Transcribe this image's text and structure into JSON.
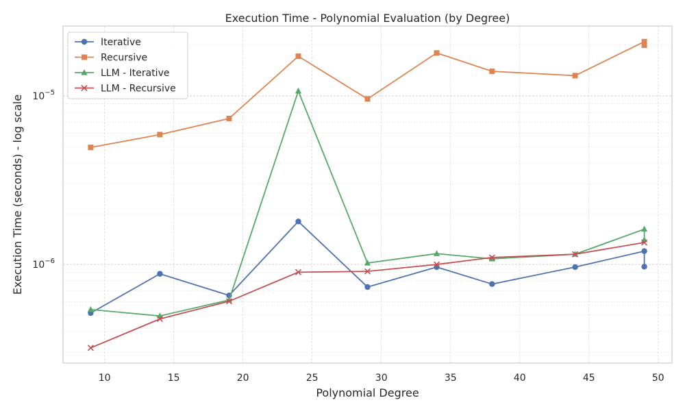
{
  "chart_data": {
    "type": "line",
    "title": "Execution Time - Polynomial Evaluation (by Degree)",
    "xlabel": "Polynomial Degree",
    "ylabel": "Execution Time (seconds) - log scale",
    "yscale": "log",
    "xlim": [
      7,
      51
    ],
    "ylim": [
      2.6e-07,
      2.6e-05
    ],
    "x_ticks": [
      10,
      15,
      20,
      25,
      30,
      35,
      40,
      45,
      50
    ],
    "y_ticks": [
      {
        "value": 1e-06,
        "base": "10",
        "exp": "−6"
      },
      {
        "value": 1e-05,
        "base": "10",
        "exp": "−5"
      }
    ],
    "grid": true,
    "legend_position": "top-left",
    "series": [
      {
        "name": "Iterative",
        "color": "#4c72b0",
        "marker": "circle",
        "points": [
          [
            9,
            5.15e-07
          ],
          [
            14,
            8.8e-07
          ],
          [
            19,
            6.55e-07
          ],
          [
            24,
            1.8e-06
          ],
          [
            29,
            7.35e-07
          ],
          [
            34,
            9.65e-07
          ],
          [
            38,
            7.65e-07
          ],
          [
            44,
            9.65e-07
          ],
          [
            49,
            1.2e-06
          ],
          [
            49,
            9.7e-07
          ]
        ]
      },
      {
        "name": "Recursive",
        "color": "#dd8452",
        "marker": "square",
        "points": [
          [
            9,
            4.95e-06
          ],
          [
            14,
            5.9e-06
          ],
          [
            19,
            7.35e-06
          ],
          [
            24,
            1.72e-05
          ],
          [
            29,
            9.6e-06
          ],
          [
            34,
            1.8e-05
          ],
          [
            38,
            1.4e-05
          ],
          [
            44,
            1.32e-05
          ],
          [
            49,
            2.1e-05
          ],
          [
            49,
            2e-05
          ]
        ]
      },
      {
        "name": "LLM - Iterative",
        "color": "#55a868",
        "marker": "triangle",
        "points": [
          [
            9,
            5.4e-07
          ],
          [
            14,
            4.95e-07
          ],
          [
            19,
            6.15e-07
          ],
          [
            24,
            1.07e-05
          ],
          [
            29,
            1.02e-06
          ],
          [
            34,
            1.16e-06
          ],
          [
            38,
            1.08e-06
          ],
          [
            44,
            1.15e-06
          ],
          [
            49,
            1.62e-06
          ],
          [
            49,
            1.4e-06
          ]
        ]
      },
      {
        "name": "LLM - Recursive",
        "color": "#c44e52",
        "marker": "x",
        "points": [
          [
            9,
            3.2e-07
          ],
          [
            14,
            4.75e-07
          ],
          [
            19,
            6.05e-07
          ],
          [
            24,
            9e-07
          ],
          [
            29,
            9.1e-07
          ],
          [
            34,
            1e-06
          ],
          [
            38,
            1.1e-06
          ],
          [
            44,
            1.15e-06
          ],
          [
            49,
            1.35e-06
          ]
        ]
      }
    ]
  }
}
